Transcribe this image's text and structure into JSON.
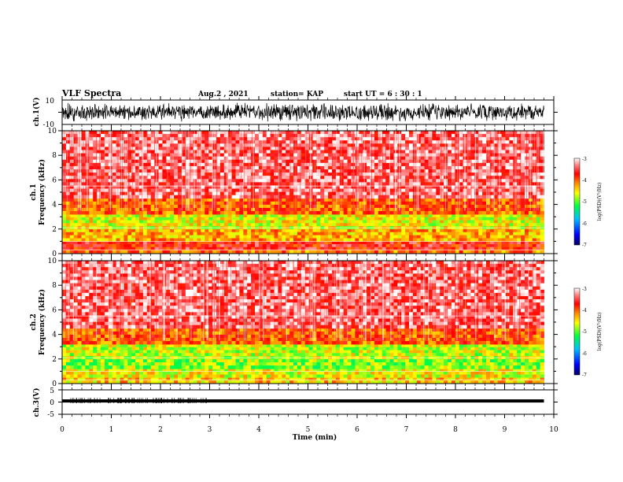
{
  "header": {
    "title": "VLF Spectra",
    "date": "Aug.2  , 2021",
    "station": "station= KAP",
    "start": "start  UT  =   6  : 30 : 1"
  },
  "chart_data": [
    {
      "type": "line",
      "id": "ch1-waveform",
      "ylabel": "ch.1(V)",
      "ylim": [
        -10,
        10
      ],
      "yticks": [
        "10",
        "-10"
      ],
      "xlim": [
        0,
        10
      ],
      "data_end_min": 9.8,
      "description_values": {
        "amplitude_range_V": [
          -8,
          8
        ],
        "color": "#000000"
      }
    },
    {
      "type": "heatmap",
      "id": "ch1-spectrogram",
      "ylabel": "ch.1\nFrequency  (kHz)",
      "ylabel_lines": [
        "ch.1",
        "Frequency  (kHz)"
      ],
      "ylim": [
        0,
        10
      ],
      "yticks": [
        "0",
        "2",
        "4",
        "6",
        "8",
        "10"
      ],
      "xlim": [
        0,
        10
      ],
      "data_end_min": 9.8,
      "bands_khz": [
        {
          "from": 0.0,
          "to": 0.3,
          "level": -4.1
        },
        {
          "from": 0.3,
          "to": 1.0,
          "level": -3.7
        },
        {
          "from": 1.0,
          "to": 2.0,
          "level": -4.3
        },
        {
          "from": 2.0,
          "to": 3.2,
          "level": -4.6
        },
        {
          "from": 3.2,
          "to": 4.5,
          "level": -4.0
        },
        {
          "from": 4.5,
          "to": 10.0,
          "level": -3.4
        }
      ],
      "colorbar": {
        "label": "log(PSD)(V²/Hz)",
        "ticks": [
          "-3",
          "-4",
          "-5",
          "-6",
          "-7"
        ],
        "range": [
          -7,
          -3
        ]
      }
    },
    {
      "type": "heatmap",
      "id": "ch2-spectrogram",
      "ylabel": "ch.2\nFrequency  (kHz)",
      "ylabel_lines": [
        "ch.2",
        "Frequency  (kHz)"
      ],
      "ylim": [
        0,
        10
      ],
      "yticks": [
        "0",
        "2",
        "4",
        "6",
        "8",
        "10"
      ],
      "xlim": [
        0,
        10
      ],
      "data_end_min": 9.8,
      "bands_khz": [
        {
          "from": 0.0,
          "to": 0.5,
          "level": -4.4
        },
        {
          "from": 0.5,
          "to": 1.2,
          "level": -4.6
        },
        {
          "from": 1.2,
          "to": 2.0,
          "level": -4.9
        },
        {
          "from": 2.0,
          "to": 3.2,
          "level": -4.7
        },
        {
          "from": 3.2,
          "to": 4.5,
          "level": -4.0
        },
        {
          "from": 4.5,
          "to": 10.0,
          "level": -3.4
        }
      ],
      "colorbar": {
        "label": "log(PSD)(V²/Hz)",
        "ticks": [
          "-3",
          "-4",
          "-5",
          "-6",
          "-7"
        ],
        "range": [
          -7,
          -3
        ]
      }
    },
    {
      "type": "line",
      "id": "ch3-waveform",
      "ylabel": "ch.3(V)",
      "ylim": [
        -5,
        5
      ],
      "yticks": [
        "5",
        "0",
        "-5"
      ],
      "xlim": [
        0,
        10
      ],
      "data_end_min": 9.8,
      "description_values": {
        "baseline_V": 0.5,
        "color": "#000000"
      }
    }
  ],
  "xaxis": {
    "label": "Time  (min)",
    "ticks": [
      "0",
      "1",
      "2",
      "3",
      "4",
      "5",
      "6",
      "7",
      "8",
      "9",
      "10"
    ],
    "range": [
      0,
      10
    ]
  }
}
